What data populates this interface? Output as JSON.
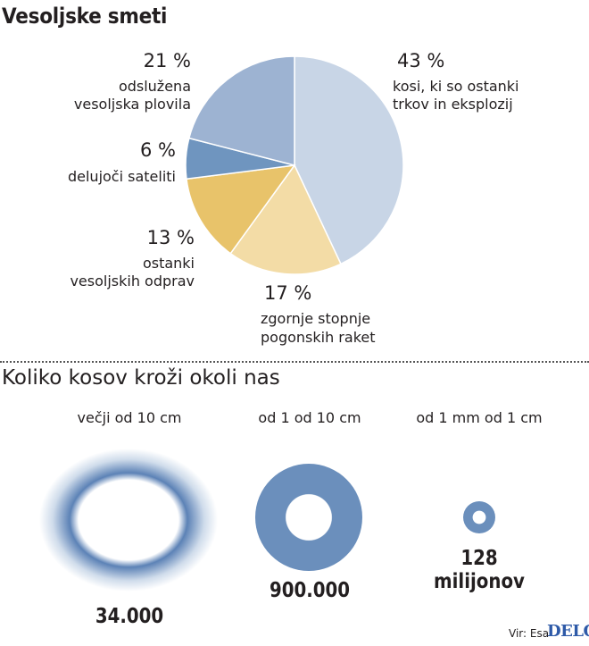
{
  "chart_data": [
    {
      "type": "pie",
      "title": "Vesoljske smeti",
      "slices": [
        {
          "percent_label": "43 %",
          "value": 43,
          "label_line1": "kosi, ki so ostanki",
          "label_line2": "trkov in eksplozij",
          "color": "#c8d5e6"
        },
        {
          "percent_label": "17 %",
          "value": 17,
          "label_line1": "zgornje stopnje",
          "label_line2": "pogonskih raket",
          "color": "#f3dca6"
        },
        {
          "percent_label": "13 %",
          "value": 13,
          "label_line1": "ostanki",
          "label_line2": "vesoljskih odprav",
          "color": "#e8c36a"
        },
        {
          "percent_label": "6 %",
          "value": 6,
          "label_line1": "delujoči sateliti",
          "label_line2": "",
          "color": "#6f95bf"
        },
        {
          "percent_label": "21 %",
          "value": 21,
          "label_line1": "odslužena",
          "label_line2": "vesoljska plovila",
          "color": "#9db3d2"
        }
      ]
    },
    {
      "type": "table",
      "title": "Koliko kosov kroži okoli nas",
      "categories": [
        "večji od 10 cm",
        "od 1 od 10 cm",
        "od 1 mm od 1 cm"
      ],
      "count_labels": [
        "34.000",
        "900.000",
        "128 milijonov"
      ],
      "values": [
        34000,
        900000,
        128000000
      ],
      "colors": {
        "ring": "#6b8fbc",
        "halo": "#5c82b6"
      }
    }
  ],
  "source": "Vir: Esa",
  "logo": "DELO"
}
